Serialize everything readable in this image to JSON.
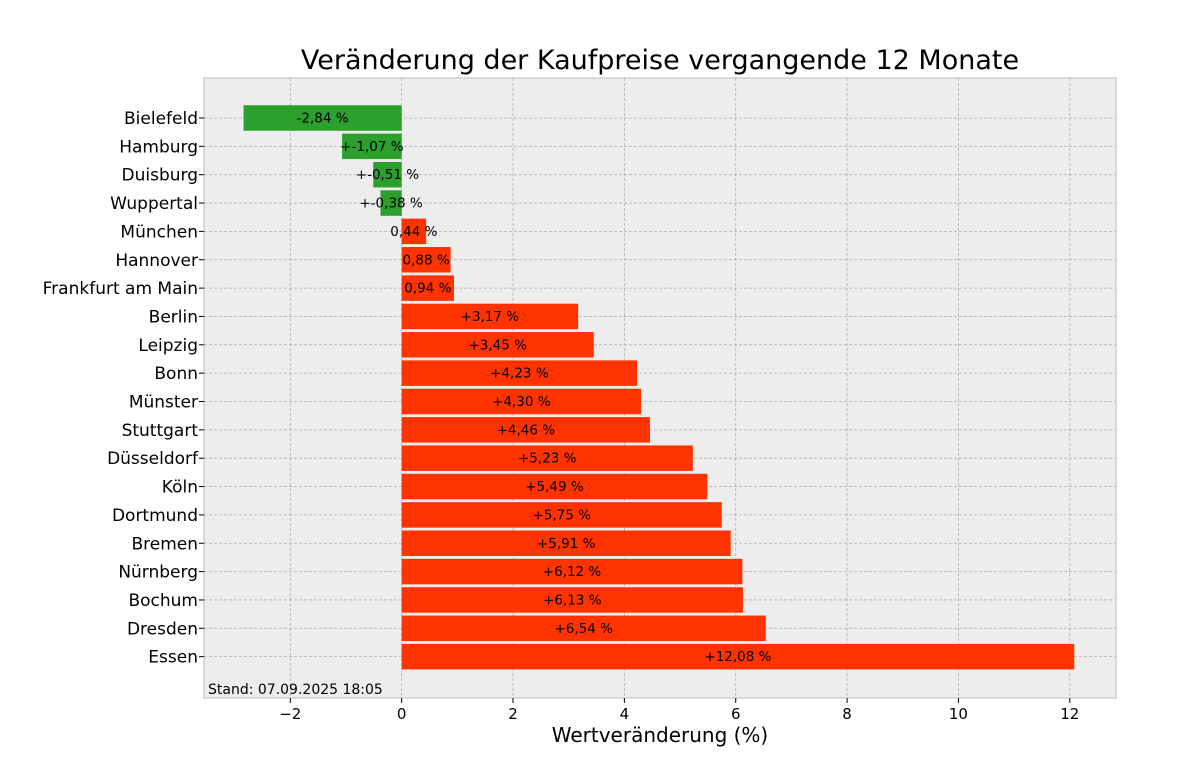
{
  "chart_data": {
    "type": "bar",
    "orientation": "horizontal",
    "title": "Veränderung der Kaufpreise vergangende 12 Monate",
    "xlabel": "Wertveränderung (%)",
    "ylabel": "",
    "xlim": [
      -3.55,
      12.83
    ],
    "xticks": [
      -2,
      0,
      2,
      4,
      6,
      8,
      10,
      12
    ],
    "xtick_labels": [
      "−2",
      "0",
      "2",
      "4",
      "6",
      "8",
      "10",
      "12"
    ],
    "grid": true,
    "legend": "none",
    "footnote": "Stand: 07.09.2025 18:05",
    "colors": {
      "negative": "#2ca02c",
      "positive": "#ff3300",
      "plot_bg": "#ededed",
      "grid": "#b0b0b0"
    },
    "categories": [
      "Bielefeld",
      "Hamburg",
      "Duisburg",
      "Wuppertal",
      "München",
      "Hannover",
      "Frankfurt am Main",
      "Berlin",
      "Leipzig",
      "Bonn",
      "Münster",
      "Stuttgart",
      "Düsseldorf",
      "Köln",
      "Dortmund",
      "Bremen",
      "Nürnberg",
      "Bochum",
      "Dresden",
      "Essen"
    ],
    "values": [
      -2.84,
      -1.07,
      -0.51,
      -0.38,
      0.44,
      0.88,
      0.94,
      3.17,
      3.45,
      4.23,
      4.3,
      4.46,
      5.23,
      5.49,
      5.75,
      5.91,
      6.12,
      6.13,
      6.54,
      12.08
    ],
    "data_labels": [
      "-2,84 %",
      "+-1,07 %",
      "+-0,51 %",
      "+-0,38 %",
      "0,44 %",
      "0,88 %",
      "0,94 %",
      "+3,17 %",
      "+3,45 %",
      "+4,23 %",
      "+4,30 %",
      "+4,46 %",
      "+5,23 %",
      "+5,49 %",
      "+5,75 %",
      "+5,91 %",
      "+6,12 %",
      "+6,13 %",
      "+6,54 %",
      "+12,08 %"
    ]
  }
}
